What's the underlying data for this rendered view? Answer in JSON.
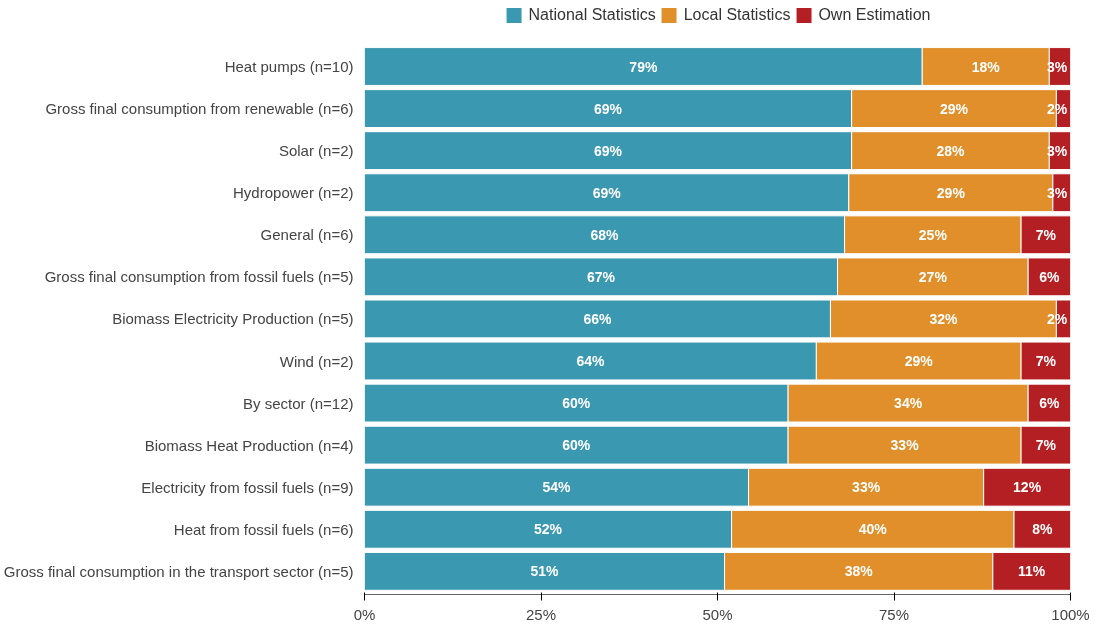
{
  "chart_data": {
    "type": "bar",
    "orientation": "horizontal",
    "stacked": true,
    "legend": "top",
    "grid": false,
    "categories": [
      "Heat pumps (n=10)",
      "Gross final consumption from renewable (n=6)",
      "Solar (n=2)",
      "Hydropower (n=2)",
      "General (n=6)",
      "Gross final consumption from fossil fuels (n=5)",
      "Biomass Electricity Production (n=5)",
      "Wind (n=2)",
      "By sector (n=12)",
      "Biomass Heat Production (n=4)",
      "Electricity from fossil fuels (n=9)",
      "Heat from fossil fuels (n=6)",
      "Gross final consumption in the transport sector (n=5)"
    ],
    "xlim": [
      0,
      100
    ],
    "xticks": [
      {
        "value": 0,
        "label": "0%"
      },
      {
        "value": 25,
        "label": "25%"
      },
      {
        "value": 50,
        "label": "50%"
      },
      {
        "value": 75,
        "label": "75%"
      },
      {
        "value": 100,
        "label": "100%"
      }
    ],
    "series": [
      {
        "name": "National Statistics",
        "color": "#3a98b0",
        "values": [
          79,
          69,
          69,
          68.6,
          68,
          67,
          66,
          64,
          60,
          60,
          54.4,
          52,
          51
        ],
        "value_labels": [
          "79%",
          "69%",
          "69%",
          "69%",
          "68%",
          "67%",
          "66%",
          "64%",
          "60%",
          "60%",
          "54%",
          "52%",
          "51%"
        ]
      },
      {
        "name": "Local Statistics",
        "color": "#e08f2a",
        "values": [
          18,
          29,
          28,
          28.9,
          25,
          27,
          32,
          29,
          34,
          33,
          33.3,
          40,
          38
        ],
        "value_labels": [
          "18%",
          "29%",
          "28%",
          "29%",
          "25%",
          "27%",
          "32%",
          "29%",
          "34%",
          "33%",
          "33%",
          "40%",
          "38%"
        ]
      },
      {
        "name": "Own Estimation",
        "color": "#b41f24",
        "values": [
          3,
          2,
          3,
          2.5,
          7,
          6,
          2,
          7,
          6,
          7,
          12.3,
          8,
          11
        ],
        "value_labels": [
          "3%",
          "2%",
          "3%",
          "3%",
          "7%",
          "6%",
          "2%",
          "7%",
          "6%",
          "7%",
          "12%",
          "8%",
          "11%"
        ]
      }
    ]
  }
}
